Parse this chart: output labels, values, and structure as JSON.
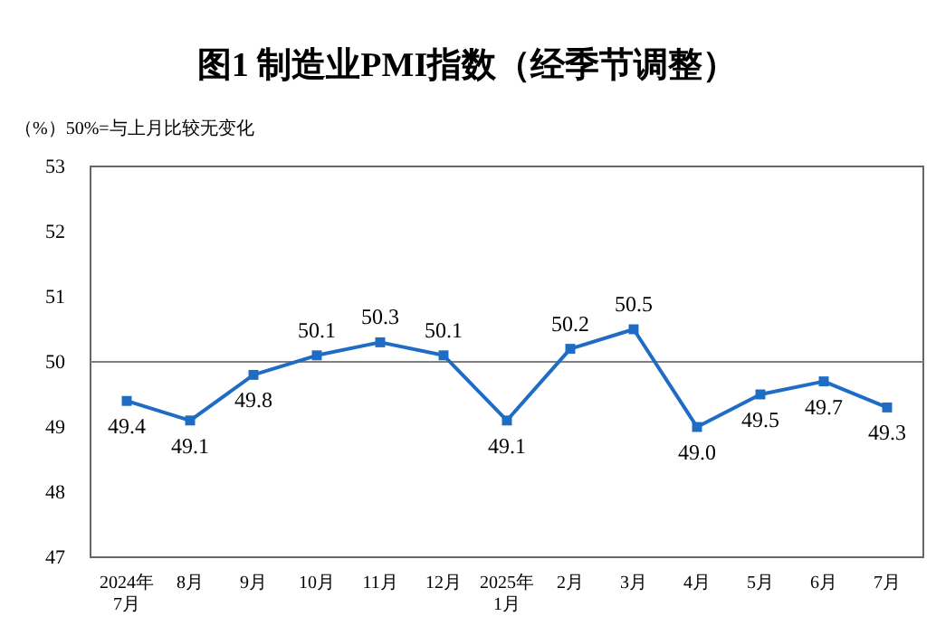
{
  "chart_data": {
    "type": "line",
    "title": "图1 制造业PMI指数（经季节调整）",
    "ylabel": "（%）50%=与上月比较无变化",
    "categories": [
      "2024年\n7月",
      "8月",
      "9月",
      "10月",
      "11月",
      "12月",
      "2025年\n1月",
      "2月",
      "3月",
      "4月",
      "5月",
      "6月",
      "7月"
    ],
    "series": [
      {
        "color": "#1f6cc4",
        "values": [
          49.4,
          49.1,
          49.8,
          50.1,
          50.3,
          50.1,
          49.1,
          50.2,
          50.5,
          49.0,
          49.5,
          49.7,
          49.3
        ],
        "value_labels": [
          "49.4",
          "49.1",
          "49.8",
          "50.1",
          "50.3",
          "50.1",
          "49.1",
          "50.2",
          "50.5",
          "49.0",
          "49.5",
          "49.7",
          "49.3"
        ]
      }
    ],
    "ylim": [
      47,
      53
    ],
    "yticks": [
      47,
      48,
      49,
      50,
      51,
      52,
      53
    ],
    "grid": false,
    "marker": "square",
    "line_style": "solid",
    "ref_lines": [
      {
        "axis": "y",
        "value": 50,
        "color": "#808080"
      }
    ]
  }
}
